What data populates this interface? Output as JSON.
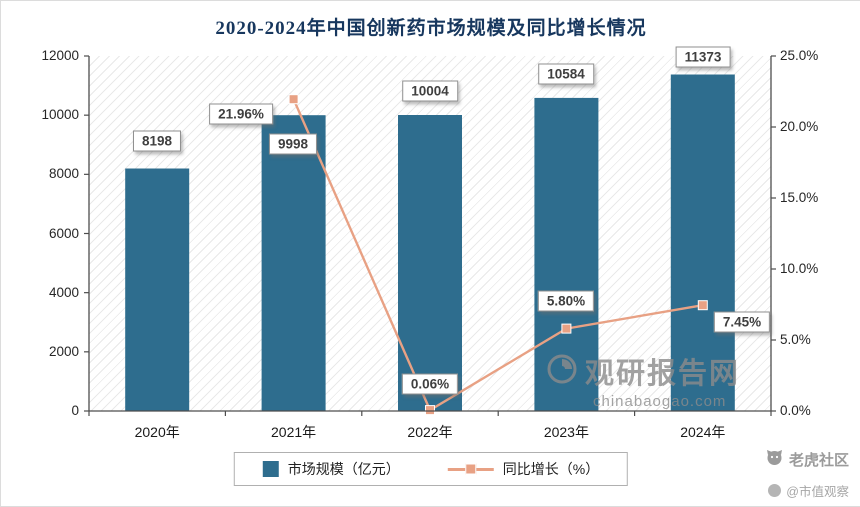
{
  "title": "2020-2024年中国创新药市场规模及同比增长情况",
  "chart_data": {
    "type": "bar+line",
    "categories": [
      "2020年",
      "2021年",
      "2022年",
      "2023年",
      "2024年"
    ],
    "series": [
      {
        "name": "市场规模（亿元）",
        "type": "bar",
        "axis": "left",
        "values": [
          8198,
          9998,
          10004,
          10584,
          11373
        ],
        "labels": [
          "8198",
          "9998",
          "10004",
          "10584",
          "11373"
        ],
        "color": "#2e6d8e"
      },
      {
        "name": "同比增长（%）",
        "type": "line",
        "axis": "right",
        "values": [
          null,
          21.96,
          0.06,
          5.8,
          7.45
        ],
        "labels": [
          null,
          "21.96%",
          "0.06%",
          "5.80%",
          "7.45%"
        ],
        "color": "#e8a184"
      }
    ],
    "left_axis": {
      "min": 0,
      "max": 12000,
      "ticks": [
        {
          "v": 0,
          "label": "0"
        },
        {
          "v": 2000,
          "label": "2000"
        },
        {
          "v": 4000,
          "label": "4000"
        },
        {
          "v": 6000,
          "label": "6000"
        },
        {
          "v": 8000,
          "label": "8000"
        },
        {
          "v": 10000,
          "label": "10000"
        },
        {
          "v": 12000,
          "label": "12000"
        }
      ]
    },
    "right_axis": {
      "min": 0,
      "max": 25,
      "ticks": [
        {
          "v": 0,
          "label": "0.0%"
        },
        {
          "v": 5,
          "label": "5.0%"
        },
        {
          "v": 10,
          "label": "10.0%"
        },
        {
          "v": 15,
          "label": "15.0%"
        },
        {
          "v": 20,
          "label": "20.0%"
        },
        {
          "v": 25,
          "label": "25.0%"
        }
      ]
    },
    "legend_position": "bottom",
    "grid": false,
    "plot_background": "diagonal-hatch"
  },
  "legend": {
    "items": [
      {
        "label": "市场规模（亿元）",
        "marker": "bar-square",
        "color": "#2e6d8e"
      },
      {
        "label": "同比增长（%）",
        "marker": "line-square",
        "color": "#e8a184"
      }
    ]
  },
  "watermark": {
    "name": "观研报告网",
    "domain": "chinabaogao.com"
  },
  "branding": {
    "community": "老虎社区",
    "account": "@市值观察"
  },
  "colors": {
    "bar": "#2e6d8e",
    "line": "#e8a184",
    "title": "#17375e"
  }
}
